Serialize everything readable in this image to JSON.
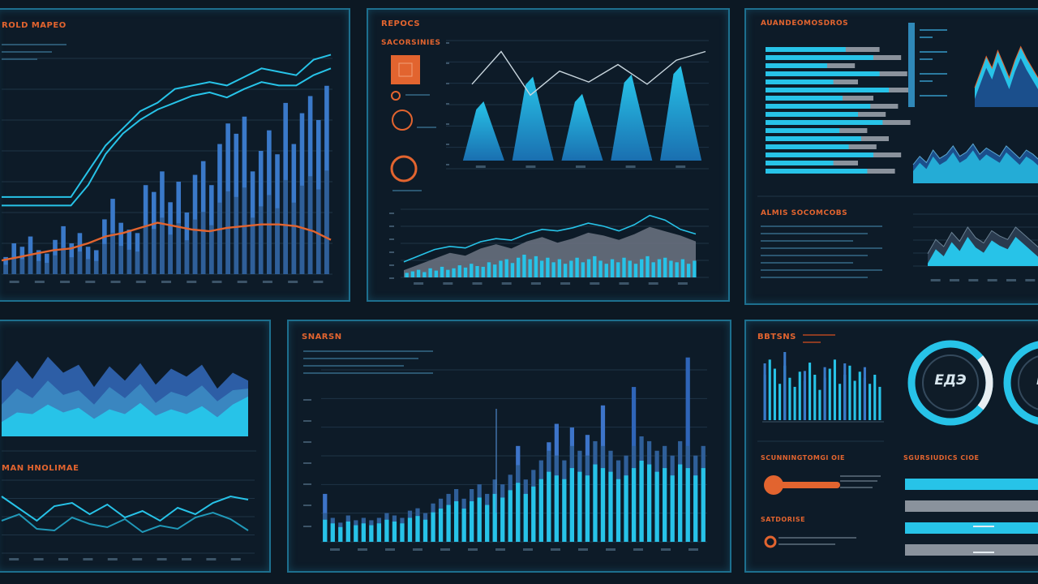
{
  "colors": {
    "background": "#0c1823",
    "panel_border": "#1d6f8e",
    "cyan": "#27c3e8",
    "blue": "#3a79c9",
    "orange": "#e2642f",
    "grey": "#8a929c"
  },
  "panels": {
    "p1": {
      "title": "ROLD MAPEO"
    },
    "p2": {
      "title": "REPOCS",
      "subtitle": "SACORSINIES"
    },
    "p3": {
      "title": "AUANDEOMOSDROS",
      "subtitle": "ALMIS SOCOMCOBS"
    },
    "p4": {
      "title": "MAN HNOLIMAE"
    },
    "p5": {
      "title": "SNARSN"
    },
    "p6": {
      "title": "BBTSNS",
      "label_a": "SCUNNINGTOMGI OIE",
      "label_b": "SATDORISE",
      "label_c": "SGURSIUDICS CIOE"
    }
  },
  "gauges": [
    {
      "text": "ЕДЭ",
      "value": 0.78
    },
    {
      "text": "ЕЭ",
      "value": 0.62
    }
  ],
  "chart_data": [
    {
      "type": "bar",
      "panel": "p1",
      "title": "ROLD MAPEO",
      "values": [
        5,
        9,
        8,
        11,
        7,
        6,
        10,
        14,
        9,
        12,
        8,
        7,
        16,
        22,
        15,
        13,
        12,
        26,
        24,
        30,
        21,
        27,
        18,
        29,
        33,
        26,
        38,
        44,
        41,
        46,
        30,
        36,
        42,
        35,
        50,
        38,
        47,
        52,
        45,
        55
      ],
      "lines": [
        {
          "name": "",
          "values": [
            45,
            45,
            45,
            45,
            45,
            60,
            75,
            85,
            95,
            100,
            108,
            110,
            112,
            110,
            115,
            120,
            118,
            116,
            125,
            128
          ]
        },
        {
          "name": "",
          "values": [
            40,
            40,
            40,
            40,
            40,
            52,
            70,
            82,
            90,
            96,
            100,
            104,
            106,
            103,
            108,
            112,
            110,
            110,
            116,
            120
          ]
        },
        {
          "name": "",
          "values": [
            8,
            10,
            12,
            14,
            15,
            18,
            22,
            24,
            27,
            30,
            28,
            26,
            25,
            27,
            28,
            29,
            29,
            28,
            25,
            20
          ]
        }
      ],
      "ylim": [
        0,
        140
      ]
    },
    {
      "type": "area",
      "panel": "p2-top",
      "peaks": [
        55,
        78,
        62,
        80,
        88
      ],
      "line": [
        70,
        100,
        60,
        82,
        72,
        88,
        70,
        92,
        100
      ],
      "ylim": [
        0,
        110
      ]
    },
    {
      "type": "bar",
      "panel": "p2-bottom",
      "values": [
        6,
        8,
        10,
        7,
        12,
        9,
        14,
        10,
        12,
        16,
        13,
        18,
        15,
        14,
        20,
        17,
        22,
        24,
        19,
        26,
        30,
        24,
        28,
        22,
        26,
        20,
        24,
        18,
        22,
        26,
        20,
        24,
        28,
        22,
        18,
        24,
        20,
        26,
        22,
        18,
        24,
        28,
        20,
        24,
        26,
        22,
        20,
        24,
        18,
        22
      ],
      "area": [
        10,
        18,
        26,
        34,
        30,
        40,
        46,
        40,
        50,
        56,
        48,
        54,
        62,
        58,
        52,
        60,
        70,
        64,
        58,
        50
      ],
      "line": [
        20,
        28,
        36,
        40,
        38,
        46,
        50,
        48,
        56,
        62,
        60,
        64,
        70,
        66,
        60,
        68,
        80,
        74,
        62,
        56
      ],
      "ylim": [
        0,
        90
      ]
    },
    {
      "type": "bar",
      "panel": "p3-hbars",
      "series": [
        {
          "name": "",
          "values": [
            74,
            88,
            58,
            92,
            60,
            96,
            70,
            86,
            78,
            94,
            66,
            80,
            72,
            88,
            60,
            84
          ]
        },
        {
          "name": "",
          "values": [
            52,
            70,
            40,
            74,
            44,
            80,
            50,
            68,
            60,
            76,
            48,
            62,
            54,
            70,
            44,
            66
          ]
        }
      ]
    },
    {
      "type": "area",
      "panel": "p3-right-top",
      "values": [
        20,
        36,
        52,
        40,
        58,
        44,
        30,
        48,
        62,
        50,
        40,
        30
      ],
      "ylim": [
        0,
        70
      ]
    },
    {
      "type": "area",
      "panel": "p3-right-mid",
      "values": [
        18,
        26,
        20,
        32,
        24,
        28,
        36,
        26,
        30,
        38,
        28,
        34,
        30,
        26,
        36,
        30,
        24,
        32,
        28,
        22
      ],
      "ylim": [
        0,
        50
      ]
    },
    {
      "type": "area",
      "panel": "p3-right-bottom",
      "values": [
        14,
        30,
        22,
        38,
        28,
        44,
        32,
        26,
        40,
        34,
        30,
        44,
        36,
        28,
        20
      ],
      "ylim": [
        0,
        55
      ]
    },
    {
      "type": "area",
      "panel": "p4-top",
      "series": [
        {
          "name": "",
          "values": [
            70,
            95,
            72,
            100,
            80,
            90,
            62,
            88,
            70,
            92,
            65,
            85,
            75,
            90,
            60,
            80,
            70
          ]
        },
        {
          "name": "",
          "values": [
            40,
            60,
            48,
            70,
            52,
            58,
            40,
            62,
            48,
            66,
            42,
            56,
            50,
            64,
            44,
            58,
            60
          ]
        },
        {
          "name": "",
          "values": [
            18,
            30,
            28,
            40,
            30,
            36,
            22,
            34,
            28,
            42,
            26,
            34,
            28,
            38,
            24,
            40,
            50
          ]
        }
      ],
      "ylim": [
        0,
        110
      ]
    },
    {
      "type": "line",
      "panel": "p4-bottom",
      "series": [
        {
          "name": "",
          "values": [
            70,
            55,
            40,
            58,
            62,
            48,
            60,
            44,
            52,
            40,
            56,
            48,
            62,
            70,
            66
          ]
        },
        {
          "name": "",
          "values": [
            40,
            48,
            30,
            28,
            44,
            36,
            32,
            42,
            26,
            34,
            30,
            44,
            50,
            42,
            28
          ]
        }
      ],
      "ylim": [
        0,
        90
      ]
    },
    {
      "type": "bar",
      "panel": "p5",
      "title": "SNARSN",
      "series": [
        {
          "name": "",
          "values": [
            12,
            10,
            8,
            11,
            9,
            10,
            9,
            10,
            12,
            11,
            10,
            13,
            14,
            12,
            16,
            18,
            20,
            22,
            18,
            22,
            24,
            20,
            26,
            24,
            28,
            32,
            26,
            30,
            34,
            38,
            36,
            34,
            40,
            38,
            36,
            42,
            40,
            38,
            34,
            36,
            40,
            44,
            42,
            38,
            40,
            36,
            42,
            40,
            36,
            40
          ]
        },
        {
          "name": "",
          "values": [
            26,
            0,
            0,
            0,
            0,
            0,
            0,
            0,
            0,
            0,
            0,
            0,
            0,
            0,
            0,
            0,
            0,
            0,
            0,
            0,
            0,
            0,
            0,
            0,
            0,
            52,
            0,
            0,
            0,
            54,
            64,
            0,
            62,
            0,
            58,
            0,
            74,
            0,
            0,
            0,
            0,
            0,
            0,
            0,
            0,
            0,
            0,
            0,
            0,
            0
          ]
        },
        {
          "name": "",
          "values": [
            0,
            0,
            0,
            0,
            0,
            0,
            0,
            0,
            0,
            0,
            0,
            0,
            0,
            0,
            0,
            0,
            0,
            0,
            0,
            0,
            0,
            0,
            0,
            0,
            0,
            0,
            0,
            0,
            0,
            0,
            0,
            0,
            0,
            0,
            0,
            0,
            0,
            0,
            0,
            0,
            84,
            0,
            0,
            0,
            0,
            0,
            0,
            100,
            0,
            0
          ]
        }
      ],
      "ylim": [
        0,
        110
      ]
    },
    {
      "type": "bar",
      "panel": "p6-bars",
      "values": [
        30,
        40,
        34,
        24,
        36,
        28,
        22,
        32,
        26,
        38,
        30,
        20,
        28,
        34,
        40,
        24,
        30,
        36,
        26,
        32,
        28,
        24,
        30,
        22
      ],
      "ylim": [
        0,
        45
      ]
    },
    {
      "type": "bar",
      "panel": "p6-hbars",
      "values": [
        100,
        100,
        100,
        100
      ]
    }
  ]
}
